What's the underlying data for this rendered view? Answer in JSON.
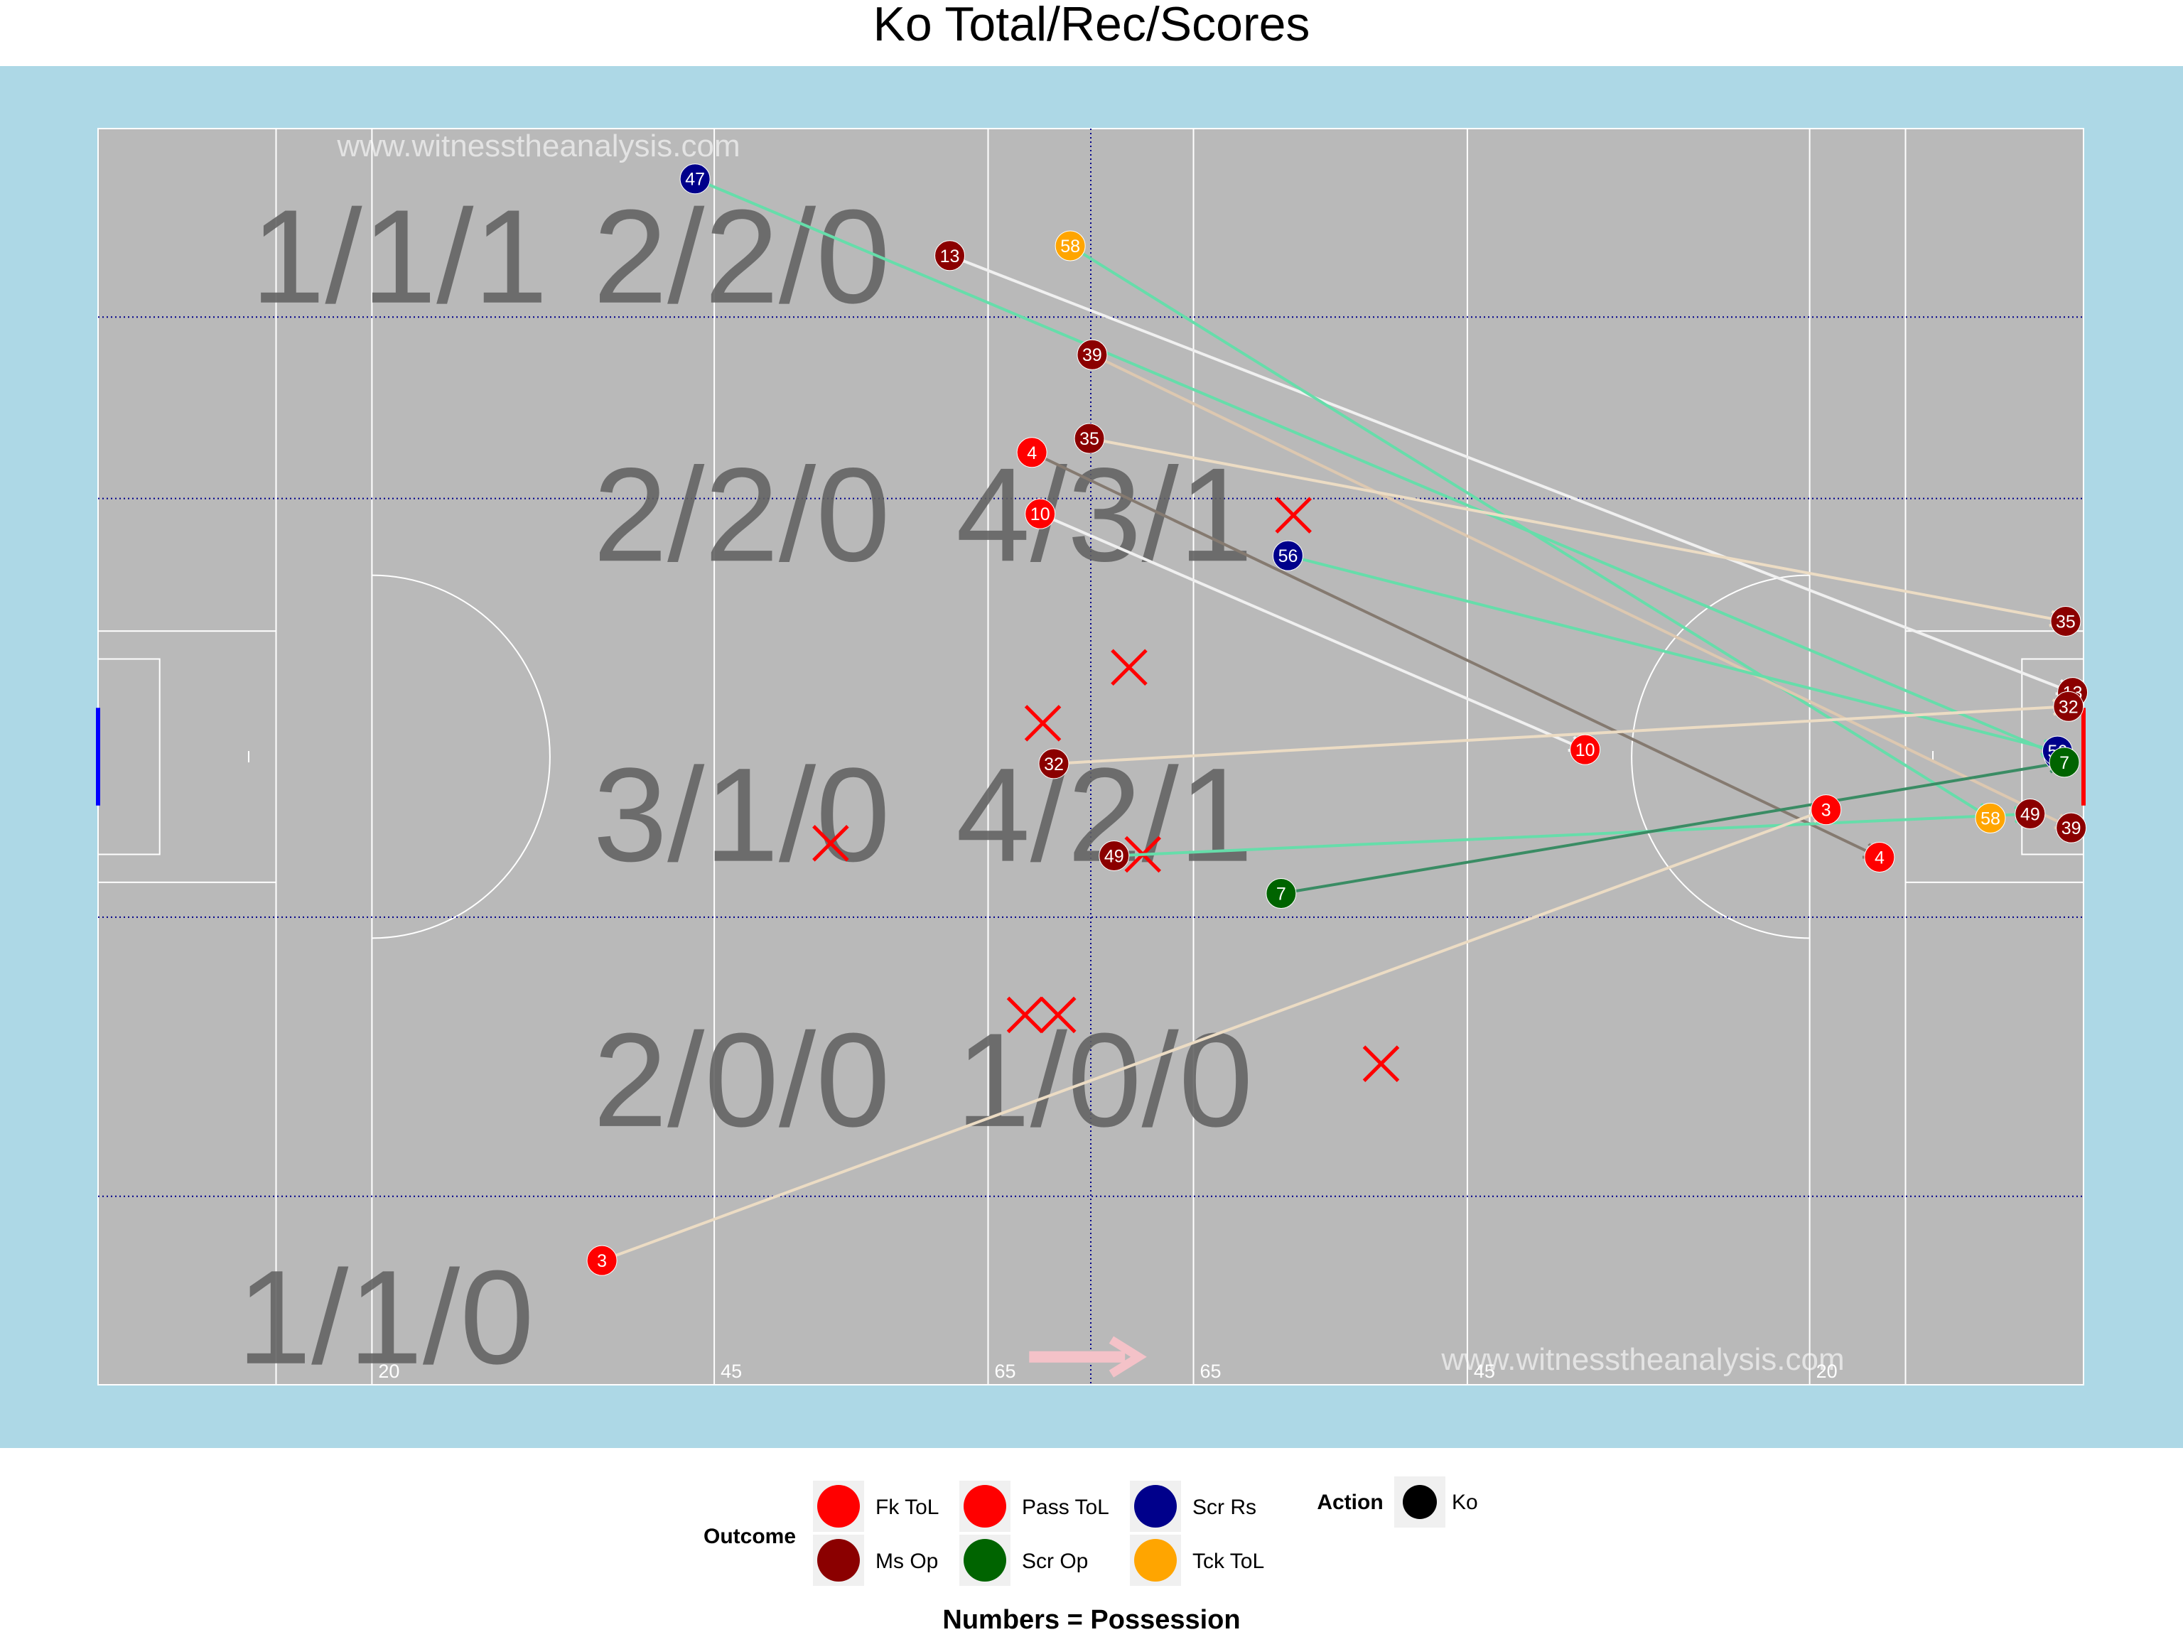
{
  "chart_data": {
    "type": "scatter",
    "title": "Ko Total/Rec/Scores",
    "caption": "Numbers = Possession",
    "watermarks": [
      "www.witnesstheanalysis.com",
      "www.witnesstheanalysis.com"
    ],
    "colors": {
      "surround": "#add8e6",
      "pitch": "#b9b9b9",
      "pitch_lines": "#ffffff",
      "zone_lines": "#00008b",
      "left_goal": "#0000ff",
      "right_goal": "#ff0000",
      "miss_cross": "#ff0000",
      "direction_arrow": "#f4c2c8"
    },
    "x_range": [
      0,
      145
    ],
    "y_range": [
      0,
      90
    ],
    "pitch_line_labels": [
      {
        "text": "20",
        "x": 20
      },
      {
        "text": "45",
        "x": 45
      },
      {
        "text": "65",
        "x": 65
      },
      {
        "text": "65",
        "x": 80
      },
      {
        "text": "45",
        "x": 100
      },
      {
        "text": "20",
        "x": 125
      }
    ],
    "zone_labels": [
      {
        "text": "1/1/1",
        "x": 22,
        "y": 81
      },
      {
        "text": "2/2/0",
        "x": 47,
        "y": 81
      },
      {
        "text": "2/2/0",
        "x": 47,
        "y": 62.5
      },
      {
        "text": "4/3/1",
        "x": 73.5,
        "y": 62.5
      },
      {
        "text": "3/1/0",
        "x": 47,
        "y": 41
      },
      {
        "text": "4/2/1",
        "x": 73.5,
        "y": 41
      },
      {
        "text": "2/0/0",
        "x": 47,
        "y": 22
      },
      {
        "text": "1/0/0",
        "x": 73.5,
        "y": 22
      },
      {
        "text": "1/1/0",
        "x": 21,
        "y": 5
      }
    ],
    "outcome_colors": {
      "Fk ToL": "#ff0000",
      "Pass ToL": "#ff0000",
      "Scr Rs": "#00008b",
      "Ms Op": "#8b0000",
      "Scr Op": "#006400",
      "Tck ToL": "#ffa500"
    },
    "kickouts": [
      {
        "possession": "47",
        "outcome": "Scr Rs",
        "x": 43.6,
        "y": 86.4,
        "end_x": 143.2,
        "end_y": 45.1,
        "line_color": "#66ddaa"
      },
      {
        "possession": "13",
        "outcome": "Ms Op",
        "x": 62.2,
        "y": 80.9,
        "end_x": 144.2,
        "end_y": 49.6,
        "line_color": "#f0f0f0"
      },
      {
        "possession": "58",
        "outcome": "Tck ToL",
        "x": 71,
        "y": 81.6,
        "end_x": 138.2,
        "end_y": 40.6,
        "line_color": "#66ddaa"
      },
      {
        "possession": "39",
        "outcome": "Ms Op",
        "x": 72.6,
        "y": 73.8,
        "end_x": 144.1,
        "end_y": 39.9,
        "line_color": "#ddc8b0"
      },
      {
        "possession": "35",
        "outcome": "Ms Op",
        "x": 72.4,
        "y": 67.8,
        "end_x": 143.7,
        "end_y": 54.7,
        "line_color": "#ecdcc4"
      },
      {
        "possession": "4",
        "outcome": "Pass ToL",
        "x": 68.2,
        "y": 66.8,
        "end_x": 130.1,
        "end_y": 37.8,
        "line_color": "#857a70"
      },
      {
        "possession": "10",
        "outcome": "Pass ToL",
        "x": 68.8,
        "y": 62.4,
        "end_x": 108.6,
        "end_y": 45.5,
        "line_color": "#f0f0f0"
      },
      {
        "possession": "56",
        "outcome": "Scr Rs",
        "x": 86.9,
        "y": 59.4,
        "end_x": 143.1,
        "end_y": 45.4,
        "line_color": "#66ddaa"
      },
      {
        "possession": "32",
        "outcome": "Ms Op",
        "x": 69.8,
        "y": 44.5,
        "end_x": 143.9,
        "end_y": 48.6,
        "line_color": "#ecdcc4"
      },
      {
        "possession": "49",
        "outcome": "Ms Op",
        "x": 74.2,
        "y": 37.9,
        "end_x": 141.1,
        "end_y": 40.9,
        "line_color": "#66ddaa"
      },
      {
        "possession": "7",
        "outcome": "Scr Op",
        "x": 86.4,
        "y": 35.2,
        "end_x": 143.6,
        "end_y": 44.6,
        "line_color": "#3a8c64"
      },
      {
        "possession": "3",
        "outcome": "Fk ToL",
        "x": 36.8,
        "y": 8.9,
        "end_x": 126.2,
        "end_y": 41.2,
        "line_color": "#ecdcc4"
      }
    ],
    "misses": [
      {
        "x": 87.3,
        "y": 62.3
      },
      {
        "x": 75.3,
        "y": 51.4
      },
      {
        "x": 69,
        "y": 47.4
      },
      {
        "x": 53.5,
        "y": 38.8
      },
      {
        "x": 76.3,
        "y": 38
      },
      {
        "x": 67.7,
        "y": 26.5
      },
      {
        "x": 70.1,
        "y": 26.5
      },
      {
        "x": 93.7,
        "y": 23
      }
    ],
    "legend": {
      "outcome_title": "Outcome",
      "outcome_items": [
        {
          "label": "Fk ToL",
          "color": "#ff0000"
        },
        {
          "label": "Ms Op",
          "color": "#8b0000"
        },
        {
          "label": "Pass ToL",
          "color": "#ff0000"
        },
        {
          "label": "Scr Op",
          "color": "#006400"
        },
        {
          "label": "Scr Rs",
          "color": "#00008b"
        },
        {
          "label": "Tck ToL",
          "color": "#ffa500"
        }
      ],
      "action_title": "Action",
      "action_items": [
        {
          "label": "Ko",
          "color": "#000000"
        }
      ]
    }
  }
}
